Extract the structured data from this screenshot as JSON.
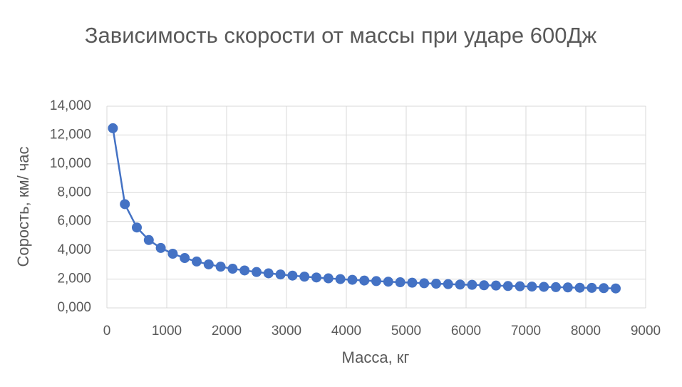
{
  "chart_data": {
    "type": "line",
    "title": "Зависимость скорости от массы при ударе 600Дж",
    "xlabel": "Масса, кг",
    "ylabel": "Сорость, км/ час",
    "x": [
      100,
      300,
      500,
      700,
      900,
      1100,
      1300,
      1500,
      1700,
      1900,
      2100,
      2300,
      2500,
      2700,
      2900,
      3100,
      3300,
      3500,
      3700,
      3900,
      4100,
      4300,
      4500,
      4700,
      4900,
      5100,
      5300,
      5500,
      5700,
      5900,
      6100,
      6300,
      6500,
      6700,
      6900,
      7100,
      7300,
      7500,
      7700,
      7900,
      8100,
      8300,
      8500
    ],
    "series": [
      {
        "color": "#4472c4",
        "values": [
          12.47,
          7.2,
          5.58,
          4.71,
          4.16,
          3.76,
          3.46,
          3.22,
          3.02,
          2.86,
          2.72,
          2.6,
          2.49,
          2.4,
          2.32,
          2.24,
          2.17,
          2.11,
          2.05,
          2.0,
          1.95,
          1.9,
          1.86,
          1.82,
          1.78,
          1.75,
          1.71,
          1.68,
          1.65,
          1.62,
          1.6,
          1.57,
          1.55,
          1.52,
          1.5,
          1.48,
          1.46,
          1.44,
          1.42,
          1.4,
          1.39,
          1.37,
          1.35
        ]
      }
    ],
    "xlim": [
      0,
      9000
    ],
    "xticks": [
      0,
      1000,
      2000,
      3000,
      4000,
      5000,
      6000,
      7000,
      8000,
      9000
    ],
    "ylim": [
      0,
      14
    ],
    "yticks": [
      {
        "value": 0,
        "label": "0,000"
      },
      {
        "value": 2,
        "label": "2,000"
      },
      {
        "value": 4,
        "label": "4,000"
      },
      {
        "value": 6,
        "label": "6,000"
      },
      {
        "value": 8,
        "label": "8,000"
      },
      {
        "value": 10,
        "label": "10,000"
      },
      {
        "value": 12,
        "label": "12,000"
      },
      {
        "value": 14,
        "label": "14,000"
      }
    ],
    "grid": true
  }
}
